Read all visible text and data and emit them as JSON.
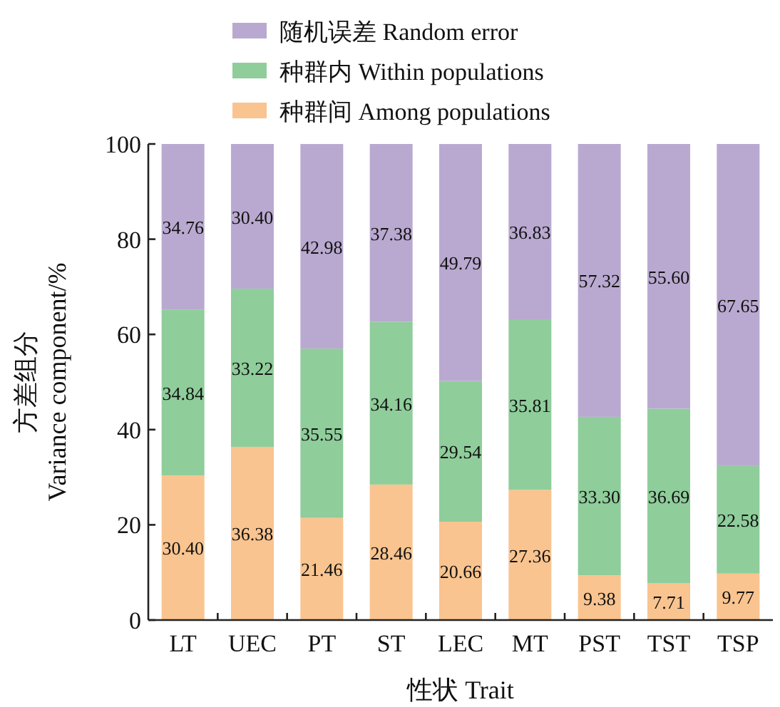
{
  "chart_data": {
    "type": "bar",
    "stacked": true,
    "legend": "top",
    "grid": false,
    "xlabel": "性状 Trait",
    "ylabel": "方差组分\nVariance component/%",
    "categories": [
      "LT",
      "UEC",
      "PT",
      "ST",
      "LEC",
      "MT",
      "PST",
      "TST",
      "TSP"
    ],
    "ylim": [
      0,
      100
    ],
    "yticks": [
      0,
      20,
      40,
      60,
      80,
      100
    ],
    "series": [
      {
        "name": "种群间 Among populations",
        "color": "#f9c48f",
        "values": [
          30.4,
          36.38,
          21.46,
          28.46,
          20.66,
          27.36,
          9.38,
          7.71,
          9.77
        ],
        "value_labels": [
          "30.40",
          "36.38",
          "21.46",
          "28.46",
          "20.66",
          "27.36",
          "9.38",
          "7.71",
          "9.77"
        ]
      },
      {
        "name": "种群内 Within populations",
        "color": "#8fcd9b",
        "values": [
          34.84,
          33.22,
          35.55,
          34.16,
          29.54,
          35.81,
          33.3,
          36.69,
          22.58
        ],
        "value_labels": [
          "34.84",
          "33.22",
          "35.55",
          "34.16",
          "29.54",
          "35.81",
          "33.30",
          "36.69",
          "22.58"
        ]
      },
      {
        "name": "随机误差 Random error",
        "color": "#b9a9d0",
        "values": [
          34.76,
          30.4,
          42.98,
          37.38,
          49.79,
          36.83,
          57.32,
          55.6,
          67.65
        ],
        "value_labels": [
          "34.76",
          "30.40",
          "42.98",
          "37.38",
          "49.79",
          "36.83",
          "57.32",
          "55.60",
          "67.65"
        ]
      }
    ]
  }
}
